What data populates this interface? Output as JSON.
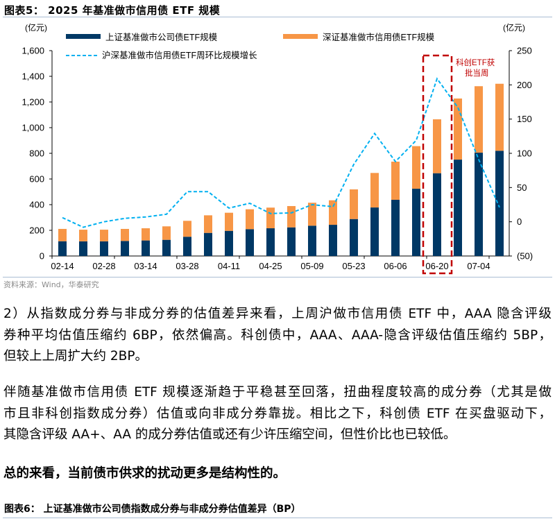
{
  "figure5": {
    "title": "图表5： 2025 年基准做市信用债 ETF 规模",
    "source": "资料来源：Wind，华泰研究"
  },
  "chart_data": {
    "type": "bar+line",
    "title": "图表5： 2025 年基准做市信用债 ETF 规模",
    "left_unit": "(亿元)",
    "right_unit": "(亿元)",
    "categories": [
      "02-14",
      "",
      "02-28",
      "",
      "03-14",
      "",
      "03-28",
      "",
      "04-11",
      "",
      "04-25",
      "",
      "05-09",
      "",
      "05-23",
      "",
      "06-06",
      "",
      "06-20",
      "",
      "07-04",
      ""
    ],
    "y_left": {
      "min": 0,
      "max": 1600,
      "ticks": [
        "0",
        "200",
        "400",
        "600",
        "800",
        "1,000",
        "1,200",
        "1,400",
        "1,600"
      ],
      "tick_values": [
        0,
        200,
        400,
        600,
        800,
        1000,
        1200,
        1400,
        1600
      ]
    },
    "y_right": {
      "min": -50,
      "max": 250,
      "ticks": [
        "(50)",
        "0",
        "50",
        "100",
        "150",
        "200",
        "250"
      ],
      "tick_values": [
        -50,
        0,
        50,
        100,
        150,
        200,
        250
      ]
    },
    "grid": false,
    "legend_position": "top",
    "series": [
      {
        "name": "上证基准做市公司债ETF规模",
        "type": "stacked-bar",
        "axis": "left",
        "color": "#003865",
        "values": [
          115,
          114,
          114,
          117,
          121,
          126,
          150,
          180,
          196,
          209,
          216,
          223,
          236,
          243,
          288,
          378,
          438,
          524,
          645,
          751,
          805,
          820
        ]
      },
      {
        "name": "深证基准做市信用债ETF规模",
        "type": "stacked-bar",
        "axis": "left",
        "color": "#f79646",
        "values": [
          96,
          91,
          91,
          94,
          95,
          105,
          124,
          137,
          141,
          155,
          161,
          166,
          179,
          191,
          231,
          269,
          297,
          332,
          420,
          476,
          518,
          522
        ]
      },
      {
        "name": "沪深基准做市信用债ETF周环比规模增长",
        "type": "line",
        "style": "dashed",
        "axis": "right",
        "color": "#00b0f0",
        "values": [
          6,
          -8,
          0,
          5,
          7,
          11,
          44,
          44,
          20,
          27,
          12,
          13,
          25,
          22,
          84,
          129,
          88,
          119,
          209,
          167,
          91,
          21
        ]
      }
    ],
    "annotation": {
      "text_line1": "科创ETF获",
      "text_line2": "批当周",
      "category": "06-20",
      "color": "#c00000"
    }
  },
  "body": {
    "para1": [
      "2）从指数成分券与非成分券的估值差异来看，上周沪做市信用债 ETF 中，AAA 隐含评级",
      "券种平均估值压缩约 6BP，依然偏高。科创债中，AAA、AAA-隐含评级估值压缩约 5BP，",
      "但较上上周扩大约 2BP。"
    ],
    "para2": [
      "伴随基准做市信用债 ETF 规模逐渐趋于平稳甚至回落，扭曲程度较高的成分券（尤其是做",
      "市且非科创指数成分券）估值或向非成分券靠拢。相比之下，科创债 ETF 在买盘驱动下，",
      "其隐含评级 AA+、AA 的成分券估值或还有少许压缩空间，但性价比也已较低。"
    ],
    "conclusion": "总的来看，当前债市供求的扰动更多是结构性的。"
  },
  "figure6": {
    "title": "图表6： 上证基准做市公司债指数成分券与非成分券估值差异（BP）"
  }
}
